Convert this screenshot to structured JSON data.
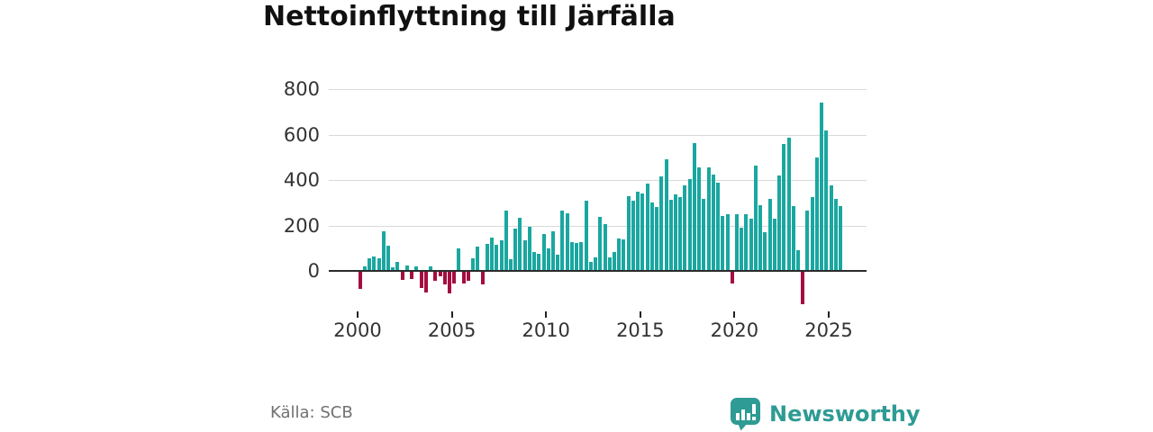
{
  "title": "Nettoinflyttning till Järfälla",
  "source": "Källa: SCB",
  "branding": {
    "name": "Newsworthy",
    "icon": "newsworthy-chart-bubble-icon",
    "color": "#2e9b94"
  },
  "colors": {
    "positive_bar": "#1aa7a0",
    "negative_bar": "#a50d3f",
    "gridline": "#d9d9d9",
    "zero_axis": "#2b2b2b",
    "tick_text": "#333333",
    "title_text": "#111111",
    "source_text": "#707070"
  },
  "chart_data": {
    "type": "bar",
    "title": "Nettoinflyttning till Järfälla",
    "xlabel": "",
    "ylabel": "",
    "x_start": "2000 Q1",
    "x_end": "2025 Q3",
    "frequency": "quarterly",
    "values": [
      -80,
      20,
      57,
      65,
      55,
      175,
      110,
      17,
      40,
      -40,
      25,
      -35,
      20,
      -75,
      -95,
      20,
      -45,
      -25,
      -60,
      -100,
      -55,
      100,
      -55,
      -45,
      55,
      105,
      -60,
      120,
      146,
      114,
      133,
      267,
      51,
      187,
      235,
      135,
      196,
      85,
      76,
      161,
      100,
      174,
      72,
      264,
      255,
      128,
      122,
      125,
      307,
      41,
      59,
      237,
      207,
      61,
      82,
      144,
      140,
      330,
      308,
      350,
      339,
      383,
      302,
      281,
      414,
      491,
      311,
      337,
      324,
      377,
      405,
      563,
      455,
      315,
      455,
      425,
      390,
      240,
      250,
      -55,
      250,
      190,
      250,
      230,
      465,
      290,
      170,
      318,
      230,
      420,
      557,
      588,
      285,
      90,
      -145,
      265,
      325,
      500,
      740,
      618,
      377,
      315,
      285
    ],
    "yticks": [
      800,
      600,
      400,
      200,
      0
    ],
    "xticks": [
      "2000",
      "2005",
      "2010",
      "2015",
      "2020",
      "2025"
    ],
    "ylim": [
      -175,
      870
    ],
    "grid": "horizontal",
    "legend": "none",
    "positive_color": "#1aa7a0",
    "negative_color": "#a50d3f"
  }
}
